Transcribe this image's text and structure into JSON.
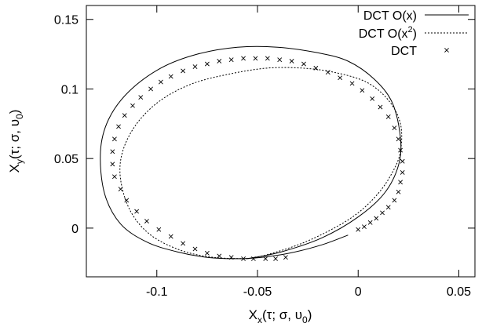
{
  "chart_data": {
    "type": "scatter",
    "title": "",
    "xlabel": "X",
    "xlabel_sub": "x",
    "xlabel_args": "(τ; σ, υ",
    "xlabel_args_sub": "0",
    "xlabel_args_end": ")",
    "ylabel": "X",
    "ylabel_sub": "y",
    "ylabel_args": "(τ; σ, υ",
    "ylabel_args_sub": "0",
    "ylabel_args_end": ")",
    "xlim": [
      -0.135,
      0.058
    ],
    "ylim": [
      -0.035,
      0.16
    ],
    "xticks": [
      {
        "value": -0.1,
        "label": "-0.1"
      },
      {
        "value": -0.05,
        "label": "-0.05"
      },
      {
        "value": 0,
        "label": "0"
      },
      {
        "value": 0.05,
        "label": "0.05"
      }
    ],
    "yticks": [
      {
        "value": 0,
        "label": "0"
      },
      {
        "value": 0.05,
        "label": "0.05"
      },
      {
        "value": 0.1,
        "label": "0.1"
      },
      {
        "value": 0.15,
        "label": "0.15"
      }
    ],
    "grid": false,
    "legend_position": "top-right",
    "legend": [
      {
        "label": "DCT O(x)",
        "style": "solid"
      },
      {
        "label": "DCT O(x",
        "sup": "2",
        "tail": ")",
        "style": "dashed"
      },
      {
        "label": "DCT",
        "style": "cross-marker"
      }
    ],
    "series": [
      {
        "name": "DCT O(x)",
        "style": "solid",
        "x": [
          -0.005,
          -0.018,
          -0.034,
          -0.048,
          -0.06,
          -0.075,
          -0.09,
          -0.105,
          -0.118,
          -0.126,
          -0.128,
          -0.124,
          -0.114,
          -0.098,
          -0.08,
          -0.06,
          -0.04,
          -0.02,
          -0.005,
          0.008,
          0.017,
          0.021,
          0.02,
          0.013,
          0.0,
          -0.018,
          -0.038,
          -0.055
        ],
        "y": [
          -0.005,
          -0.012,
          -0.018,
          -0.021,
          -0.022,
          -0.021,
          -0.017,
          -0.01,
          0.003,
          0.025,
          0.055,
          0.078,
          0.098,
          0.115,
          0.125,
          0.13,
          0.13,
          0.126,
          0.12,
          0.107,
          0.09,
          0.065,
          0.045,
          0.025,
          0.008,
          -0.007,
          -0.017,
          -0.022
        ]
      },
      {
        "name": "DCT O(x²)",
        "style": "dashed",
        "x": [
          -0.055,
          -0.072,
          -0.088,
          -0.103,
          -0.113,
          -0.118,
          -0.117,
          -0.11,
          -0.098,
          -0.082,
          -0.063,
          -0.045,
          -0.028,
          -0.012,
          0.004,
          0.015,
          0.021,
          0.021,
          0.017,
          0.01,
          0.0,
          -0.012,
          -0.028,
          -0.045,
          -0.055
        ],
        "y": [
          -0.022,
          -0.021,
          -0.016,
          -0.005,
          0.012,
          0.035,
          0.055,
          0.075,
          0.092,
          0.104,
          0.111,
          0.115,
          0.115,
          0.112,
          0.105,
          0.092,
          0.075,
          0.055,
          0.04,
          0.025,
          0.011,
          0.0,
          -0.011,
          -0.019,
          -0.022
        ]
      },
      {
        "name": "DCT",
        "style": "cross-marker",
        "x": [
          0.0,
          0.003,
          0.006,
          0.009,
          0.012,
          0.015,
          0.018,
          0.02,
          0.021,
          0.022,
          0.022,
          0.021,
          0.02,
          0.018,
          0.015,
          0.011,
          0.007,
          0.002,
          -0.003,
          -0.009,
          -0.015,
          -0.021,
          -0.027,
          -0.033,
          -0.039,
          -0.045,
          -0.051,
          -0.057,
          -0.063,
          -0.069,
          -0.075,
          -0.081,
          -0.087,
          -0.093,
          -0.098,
          -0.103,
          -0.108,
          -0.112,
          -0.116,
          -0.119,
          -0.121,
          -0.122,
          -0.122,
          -0.121,
          -0.118,
          -0.115,
          -0.11,
          -0.105,
          -0.099,
          -0.093,
          -0.087,
          -0.081,
          -0.075,
          -0.069,
          -0.063,
          -0.057,
          -0.052,
          -0.046,
          -0.041,
          -0.036
        ],
        "y": [
          -0.001,
          0.001,
          0.004,
          0.007,
          0.011,
          0.015,
          0.02,
          0.026,
          0.033,
          0.04,
          0.048,
          0.056,
          0.064,
          0.072,
          0.08,
          0.087,
          0.093,
          0.099,
          0.104,
          0.108,
          0.112,
          0.115,
          0.118,
          0.12,
          0.121,
          0.122,
          0.122,
          0.122,
          0.121,
          0.12,
          0.118,
          0.116,
          0.113,
          0.109,
          0.105,
          0.1,
          0.094,
          0.088,
          0.081,
          0.073,
          0.064,
          0.055,
          0.046,
          0.037,
          0.028,
          0.02,
          0.012,
          0.005,
          -0.001,
          -0.006,
          -0.011,
          -0.015,
          -0.018,
          -0.02,
          -0.021,
          -0.022,
          -0.022,
          -0.022,
          -0.022,
          -0.021
        ]
      }
    ]
  }
}
